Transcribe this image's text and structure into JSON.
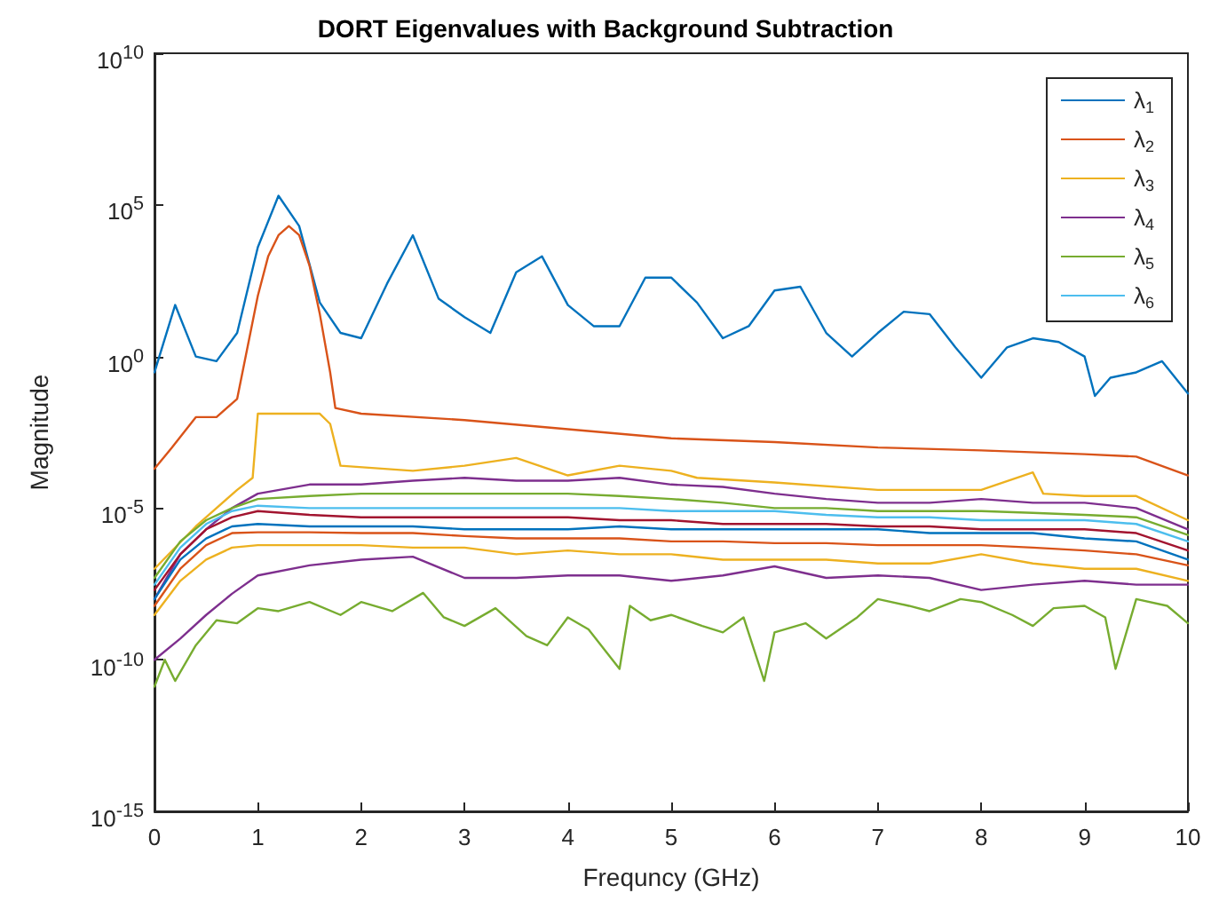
{
  "chart_data": {
    "type": "line",
    "title": "DORT Eigenvalues with Background Subtraction",
    "xlabel": "Frequncy (GHz)",
    "ylabel": "Magnitude",
    "log": "y",
    "legend": "top right",
    "grid": false,
    "xlim": [
      0,
      10
    ],
    "xticks": [
      0,
      1,
      2,
      3,
      4,
      5,
      6,
      7,
      8,
      9,
      10
    ],
    "ylim": [
      1e-15,
      10000000000.0
    ],
    "yticks": [
      {
        "value": 1e-15,
        "label": "10$^{-15}$"
      },
      {
        "value": 1e-10,
        "label": "10$^{-10}$"
      },
      {
        "value": 1e-05,
        "label": "10$^{-5}$"
      },
      {
        "value": 1,
        "label": "10$^{0}$"
      },
      {
        "value": 100000.0,
        "label": "10$^{5}$"
      },
      {
        "value": 10000000000.0,
        "label": "10$^{10}$"
      }
    ],
    "x": [
      0,
      0.25,
      0.5,
      0.75,
      1,
      1.5,
      2,
      2.5,
      3,
      3.5,
      4,
      4.5,
      5,
      5.5,
      6,
      6.5,
      7,
      7.5,
      8,
      8.5,
      9,
      9.5,
      10
    ],
    "series": [
      {
        "name": "λ$_{1}$",
        "color": "#0072bd",
        "x": [
          0,
          0.2,
          0.4,
          0.6,
          0.8,
          1.0,
          1.2,
          1.4,
          1.6,
          1.8,
          2.0,
          2.25,
          2.5,
          2.75,
          3,
          3.25,
          3.5,
          3.75,
          4,
          4.25,
          4.5,
          4.75,
          5,
          5.25,
          5.5,
          5.75,
          6,
          6.25,
          6.5,
          6.75,
          7,
          7.25,
          7.5,
          7.75,
          8,
          8.25,
          8.5,
          8.75,
          9,
          9.1,
          9.25,
          9.5,
          9.75,
          10
        ],
        "values": [
          0.3,
          50,
          1,
          0.7,
          6,
          4000,
          200000.0,
          20000.0,
          60,
          6,
          4,
          250,
          10000.0,
          80,
          20,
          6,
          600,
          2000,
          50,
          10,
          10,
          400,
          400,
          60,
          4,
          10,
          150,
          200,
          6,
          1,
          6,
          30,
          25,
          2,
          0.2,
          2,
          4,
          3,
          1,
          0.05,
          0.2,
          0.3,
          0.7,
          0.06
        ]
      },
      {
        "name": "λ$_{2}$",
        "color": "#d95319",
        "x": [
          0,
          0.17,
          0.4,
          0.6,
          0.8,
          0.9,
          1,
          1.1,
          1.2,
          1.3,
          1.4,
          1.5,
          1.6,
          1.7,
          1.75,
          2,
          3,
          4,
          5,
          6,
          7,
          8,
          9,
          9.5,
          10
        ],
        "values": [
          0.0002,
          0.001,
          0.01,
          0.01,
          0.04,
          2,
          100,
          2000,
          10000.0,
          20000.0,
          10000.0,
          1000,
          25,
          0.3,
          0.02,
          0.013,
          0.008,
          0.004,
          0.002,
          0.0015,
          0.001,
          0.0008,
          0.0006,
          0.0005,
          0.00012
        ]
      },
      {
        "name": "λ$_{3}$",
        "color": "#edb120",
        "x": [
          0,
          0.4,
          0.8,
          0.95,
          1.0,
          1.6,
          1.7,
          1.8,
          2.5,
          3,
          3.5,
          4,
          4.5,
          5,
          5.25,
          6,
          7,
          8,
          8.5,
          8.6,
          9,
          9.5,
          10
        ],
        "values": [
          1e-07,
          2.5e-06,
          4e-05,
          0.0001,
          0.013,
          0.013,
          0.006,
          0.00025,
          0.00017,
          0.00025,
          0.00045,
          0.00012,
          0.00025,
          0.00017,
          0.0001,
          7e-05,
          4e-05,
          4e-05,
          0.00015,
          3e-05,
          2.5e-05,
          2.5e-05,
          4e-06
        ]
      },
      {
        "name": "λ$_{4}$",
        "color": "#7e2f8e",
        "values": [
          1e-08,
          3e-07,
          2e-06,
          1e-05,
          3e-05,
          6e-05,
          6e-05,
          8e-05,
          0.0001,
          8e-05,
          8e-05,
          0.0001,
          6e-05,
          5e-05,
          3e-05,
          2e-05,
          1.5e-05,
          1.5e-05,
          2e-05,
          1.5e-05,
          1.5e-05,
          1e-05,
          2e-06
        ]
      },
      {
        "name": "λ$_{5}$",
        "color": "#77ac30",
        "values": [
          5e-08,
          8e-07,
          4e-06,
          1e-05,
          2e-05,
          2.5e-05,
          3e-05,
          3e-05,
          3e-05,
          3e-05,
          3e-05,
          2.5e-05,
          2e-05,
          1.5e-05,
          1e-05,
          1e-05,
          8e-06,
          8e-06,
          8e-06,
          7e-06,
          6e-06,
          5e-06,
          1.3e-06
        ]
      },
      {
        "name": "λ$_{6}$",
        "color": "#4dbeee",
        "values": [
          3e-08,
          5e-07,
          3e-06,
          8e-06,
          1.2e-05,
          1e-05,
          1e-05,
          1e-05,
          1e-05,
          1e-05,
          1e-05,
          1e-05,
          8e-06,
          8e-06,
          8e-06,
          6e-06,
          5e-06,
          5e-06,
          4e-06,
          4e-06,
          4e-06,
          3e-06,
          8e-07
        ]
      },
      {
        "color": "#a2142f",
        "values": [
          2e-08,
          3e-07,
          2e-06,
          5e-06,
          8e-06,
          6e-06,
          5e-06,
          5e-06,
          5e-06,
          5e-06,
          5e-06,
          4e-06,
          4e-06,
          3e-06,
          3e-06,
          3e-06,
          2.5e-06,
          2.5e-06,
          2e-06,
          2e-06,
          2e-06,
          1.5e-06,
          4e-07
        ]
      },
      {
        "color": "#0072bd",
        "values": [
          1e-08,
          2e-07,
          1e-06,
          2.5e-06,
          3e-06,
          2.5e-06,
          2.5e-06,
          2.5e-06,
          2e-06,
          2e-06,
          2e-06,
          2.5e-06,
          2e-06,
          2e-06,
          2e-06,
          2e-06,
          2e-06,
          1.5e-06,
          1.5e-06,
          1.5e-06,
          1e-06,
          8e-07,
          2e-07
        ]
      },
      {
        "color": "#d95319",
        "values": [
          6e-09,
          1e-07,
          6e-07,
          1.5e-06,
          1.6e-06,
          1.6e-06,
          1.5e-06,
          1.5e-06,
          1.2e-06,
          1e-06,
          1e-06,
          1e-06,
          8e-07,
          8e-07,
          7e-07,
          7e-07,
          6e-07,
          6e-07,
          6e-07,
          5e-07,
          4e-07,
          3e-07,
          1.3e-07
        ]
      },
      {
        "color": "#edb120",
        "values": [
          3e-09,
          4e-08,
          2e-07,
          5e-07,
          6e-07,
          6e-07,
          6e-07,
          5e-07,
          5e-07,
          3e-07,
          4e-07,
          3e-07,
          3e-07,
          2e-07,
          2e-07,
          2e-07,
          1.5e-07,
          1.5e-07,
          3e-07,
          1.5e-07,
          1e-07,
          1e-07,
          4e-08
        ]
      },
      {
        "color": "#7e2f8e",
        "values": [
          1e-10,
          5e-10,
          3e-09,
          1.5e-08,
          6e-08,
          1.3e-07,
          2e-07,
          2.5e-07,
          5e-08,
          5e-08,
          6e-08,
          6e-08,
          4e-08,
          6e-08,
          1.2e-07,
          5e-08,
          6e-08,
          5e-08,
          2e-08,
          3e-08,
          4e-08,
          3e-08,
          3e-08
        ]
      },
      {
        "color": "#77ac30",
        "x": [
          0,
          0.1,
          0.2,
          0.4,
          0.6,
          0.8,
          1,
          1.2,
          1.5,
          1.8,
          2,
          2.3,
          2.6,
          2.8,
          3,
          3.3,
          3.6,
          3.8,
          4,
          4.2,
          4.5,
          4.6,
          4.8,
          5,
          5.3,
          5.5,
          5.7,
          5.9,
          6,
          6.3,
          6.5,
          6.8,
          7,
          7.3,
          7.5,
          7.8,
          8,
          8.3,
          8.5,
          8.7,
          9,
          9.2,
          9.3,
          9.5,
          9.8,
          10
        ],
        "values": [
          1.3e-11,
          1e-10,
          2e-11,
          3e-10,
          2e-09,
          1.6e-09,
          5e-09,
          4e-09,
          8e-09,
          3e-09,
          8e-09,
          4e-09,
          1.6e-08,
          2.5e-09,
          1.3e-09,
          5e-09,
          6e-10,
          3e-10,
          2.5e-09,
          1e-09,
          5e-11,
          6e-09,
          2e-09,
          3e-09,
          1.3e-09,
          8e-10,
          2.5e-09,
          2e-11,
          8e-10,
          1.6e-09,
          5e-10,
          2.5e-09,
          1e-08,
          6e-09,
          4e-09,
          1e-08,
          8e-09,
          3e-09,
          1.3e-09,
          5e-09,
          6e-09,
          2.5e-09,
          5e-11,
          1e-08,
          6e-09,
          1.6e-09
        ]
      }
    ]
  }
}
